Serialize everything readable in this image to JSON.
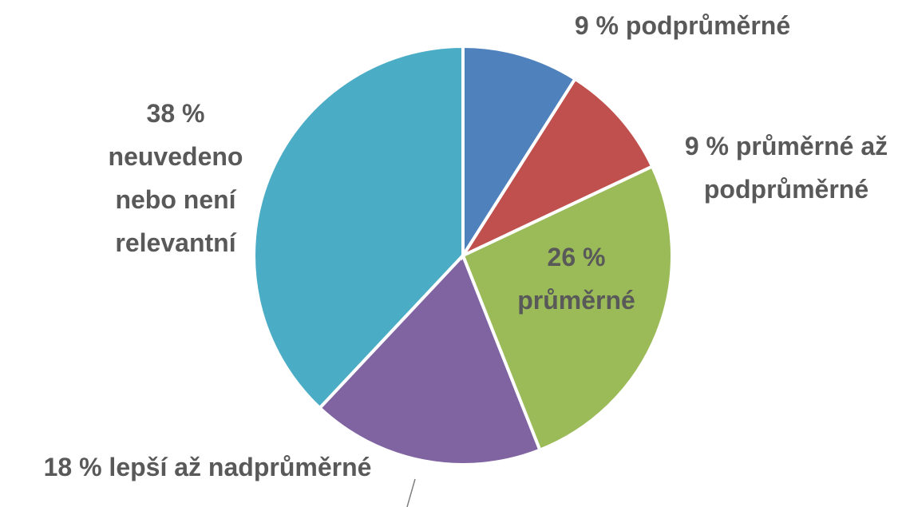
{
  "chart_data": {
    "type": "pie",
    "categories": [
      "podprůměrné",
      "průměrné až podprůměrné",
      "průměrné",
      "lepší až nadprůměrné",
      "neuvedeno nebo není relevantní"
    ],
    "values": [
      9,
      9,
      26,
      18,
      38
    ],
    "value_labels": [
      "9 %",
      "9 %",
      "26 %",
      "18 %",
      "38 %"
    ],
    "colors": [
      "#4f81bd",
      "#c0504d",
      "#9bbb59",
      "#8064a2",
      "#4bacc6"
    ]
  }
}
